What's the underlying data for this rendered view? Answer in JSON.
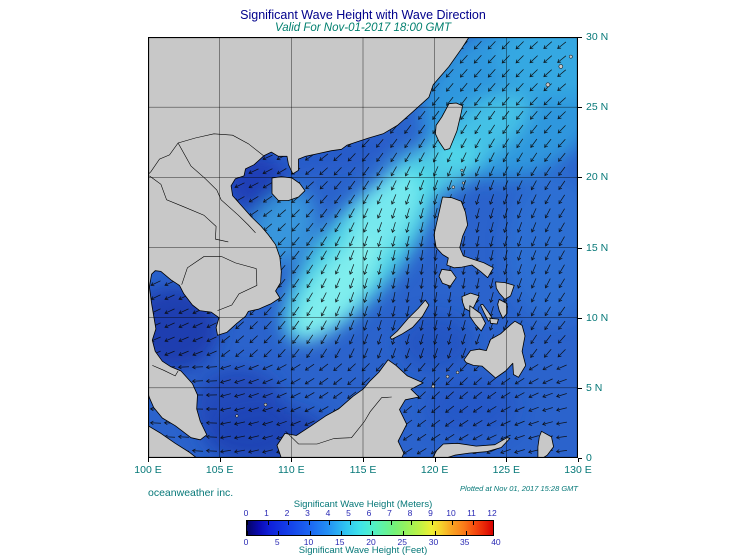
{
  "figure": {
    "title": "Significant Wave Height with Wave Direction",
    "subtitle": "Valid For Nov-01-2017 18:00 GMT",
    "credit": "oceanweather inc.",
    "plotted_note": "Plotted at Nov 01, 2017 15:28 GMT"
  },
  "axes": {
    "x_ticks": [
      "100 E",
      "105 E",
      "110 E",
      "115 E",
      "120 E",
      "125 E",
      "130 E"
    ],
    "y_ticks": [
      "30 N",
      "25 N",
      "20 N",
      "15 N",
      "10 N",
      "5 N",
      "0"
    ]
  },
  "colorbar": {
    "meters_title": "Significant Wave Height (Meters)",
    "feet_title": "Significant Wave Height (Feet)",
    "meter_labels": [
      "0",
      "1",
      "2",
      "3",
      "4",
      "5",
      "6",
      "7",
      "8",
      "9",
      "10",
      "11",
      "12"
    ],
    "feet_labels": [
      "0",
      "5",
      "10",
      "15",
      "20",
      "25",
      "30",
      "35",
      "40"
    ],
    "meters_max": 12,
    "feet_per_meter": 3.2808,
    "stops": [
      [
        "0%",
        "#050563"
      ],
      [
        "5%",
        "#0a0ab4"
      ],
      [
        "9%",
        "#0f1fd8"
      ],
      [
        "17%",
        "#1440e8"
      ],
      [
        "25%",
        "#1b63f2"
      ],
      [
        "33%",
        "#2390f5"
      ],
      [
        "40%",
        "#2fc3f2"
      ],
      [
        "46%",
        "#3fe3ea"
      ],
      [
        "50%",
        "#4ceed2"
      ],
      [
        "55%",
        "#5ff2a5"
      ],
      [
        "60%",
        "#74f279"
      ],
      [
        "65%",
        "#97f25c"
      ],
      [
        "70%",
        "#bdf246"
      ],
      [
        "75%",
        "#eef034"
      ],
      [
        "79%",
        "#f6d02c"
      ],
      [
        "83%",
        "#f9a522"
      ],
      [
        "88%",
        "#fa7d1a"
      ],
      [
        "92%",
        "#f65110"
      ],
      [
        "96%",
        "#ea2a08"
      ],
      [
        "100%",
        "#d60000"
      ]
    ]
  },
  "map": {
    "lon_min": 100,
    "lon_max": 130,
    "lat_min": 0,
    "lat_max": 30,
    "colors": {
      "land": "#c8c8c8",
      "coast": "#000000",
      "ocean_base": "#2b63cc",
      "grid": "#000000",
      "arrow": "#0a0a0a"
    }
  },
  "chart_data": {
    "type": "heatmap",
    "title": "Significant Wave Height with Wave Direction",
    "valid_time": "Nov-01-2017 18:00 GMT",
    "plotted_time": "Nov 01, 2017 15:28 GMT",
    "region": {
      "lon_range_deg_e": [
        100,
        130
      ],
      "lat_range_deg_n": [
        0,
        30
      ]
    },
    "scale_meters": [
      0,
      1,
      2,
      3,
      4,
      5,
      6,
      7,
      8,
      9,
      10,
      11,
      12
    ],
    "scale_feet": [
      0,
      5,
      10,
      15,
      20,
      25,
      30,
      35,
      40
    ],
    "legend_meters_label": "Significant Wave Height (Meters)",
    "legend_feet_label": "Significant Wave Height (Feet)"
  }
}
